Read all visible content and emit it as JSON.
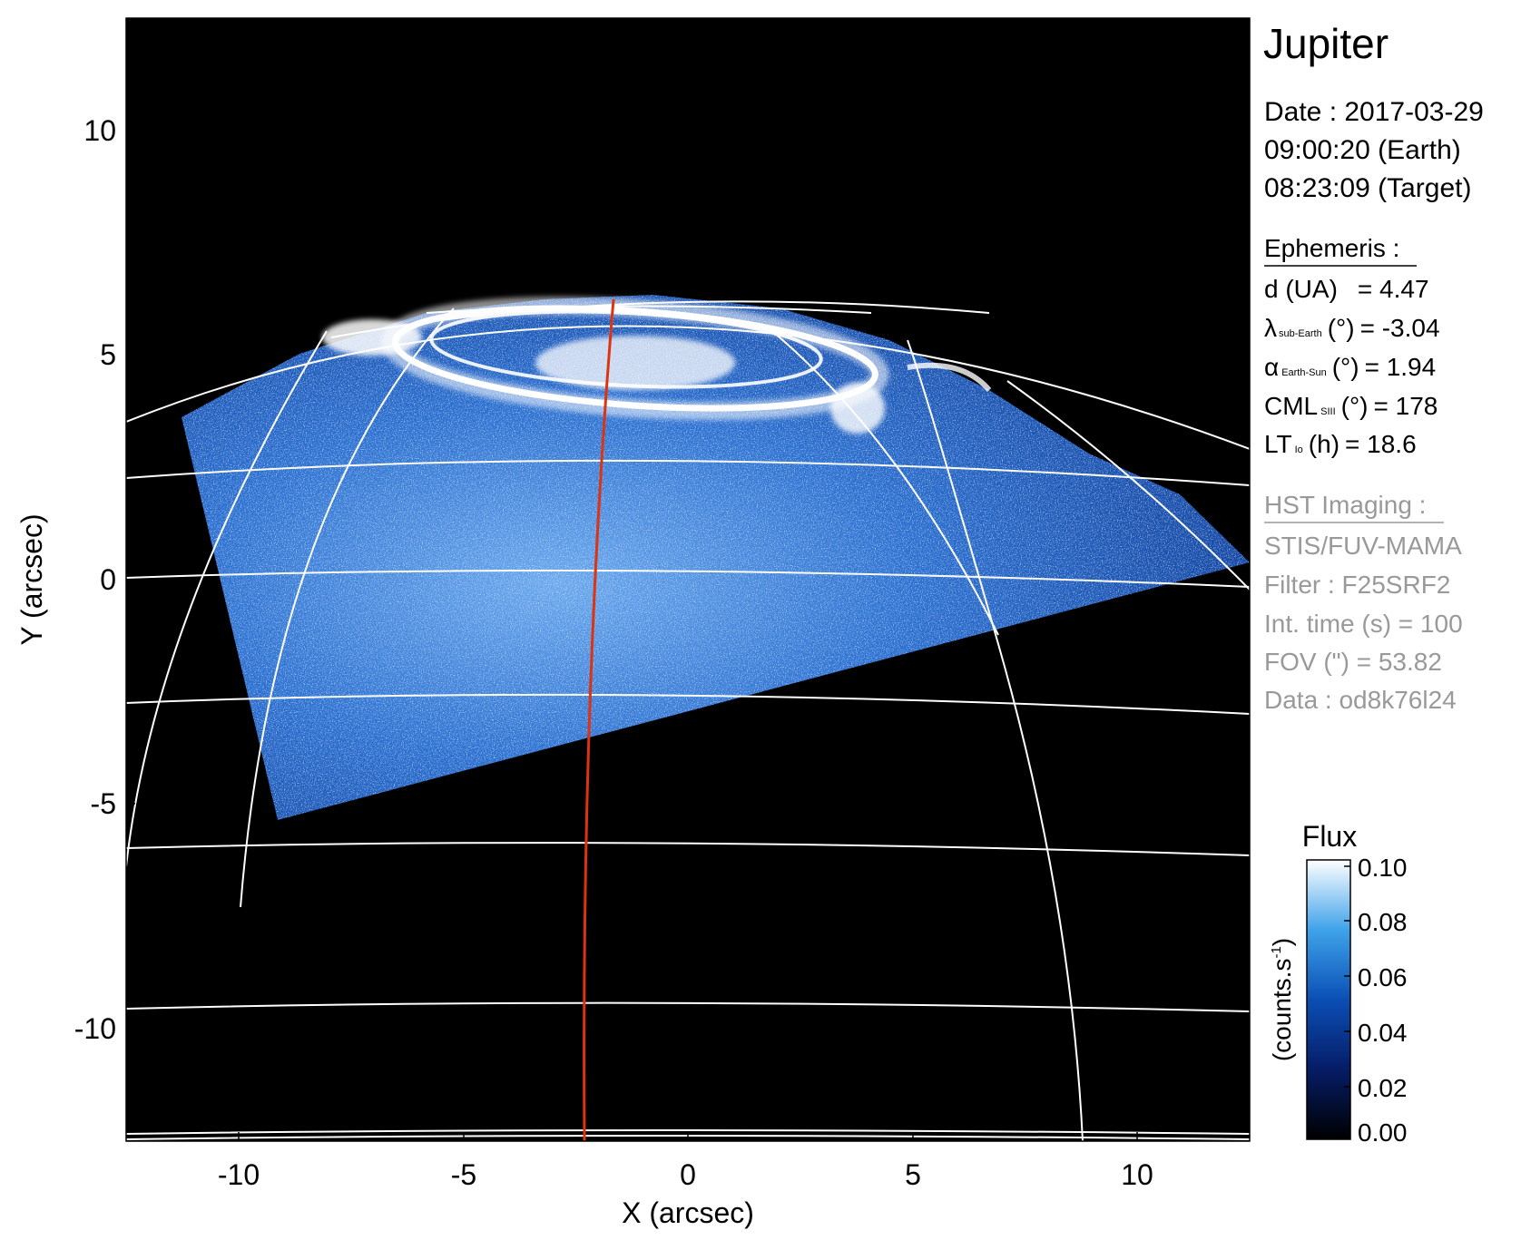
{
  "title": "Jupiter",
  "observation": {
    "date_line": "Date : 2017-03-29",
    "time_earth": "09:00:20 (Earth)",
    "time_target": "08:23:09 (Target)"
  },
  "ephemeris": {
    "heading": "Ephemeris :",
    "rows": [
      {
        "name": "d (UA)",
        "sub": "",
        "unit": "",
        "value": "= 4.47"
      },
      {
        "name": "λ",
        "sub": "sub-Earth",
        "unit": "(°)",
        "value": "= -3.04"
      },
      {
        "name": "α",
        "sub": "Earth-Sun",
        "unit": "(°)",
        "value": "= 1.94"
      },
      {
        "name": "CML",
        "sub": "SIII",
        "unit": "(°)",
        "value": "= 178"
      },
      {
        "name": "LT",
        "sub": "Io",
        "unit": "(h)",
        "value": "= 18.6"
      }
    ]
  },
  "imaging": {
    "heading": "HST Imaging :",
    "lines": [
      "STIS/FUV-MAMA",
      "Filter : F25SRF2",
      "Int. time (s) = 100",
      "FOV (\") = 53.82",
      "Data : od8k76l24"
    ]
  },
  "axes": {
    "xlabel": "X (arcsec)",
    "ylabel": "Y (arcsec)",
    "xlim": [
      -12.5,
      12.5
    ],
    "ylim": [
      -12.5,
      12.5
    ],
    "xticks": [
      "-10",
      "-5",
      "0",
      "5",
      "10"
    ],
    "yticks": [
      "10",
      "5",
      "0",
      "-5",
      "-10"
    ]
  },
  "colorbar": {
    "title": "Flux",
    "unit_label": "(counts.s",
    "unit_exp": "-1",
    "unit_close": ")",
    "ticks": [
      "0.10",
      "0.08",
      "0.06",
      "0.04",
      "0.02",
      "0.00"
    ],
    "range": [
      0.0,
      0.1
    ]
  },
  "colors": {
    "background": "#000000",
    "grid": "#ffffff",
    "meridian": "#dd3311",
    "flux_low": "#000000",
    "flux_mid": "#0a4fb5",
    "flux_high": "#ffffff",
    "imaging_text": "#999999"
  }
}
